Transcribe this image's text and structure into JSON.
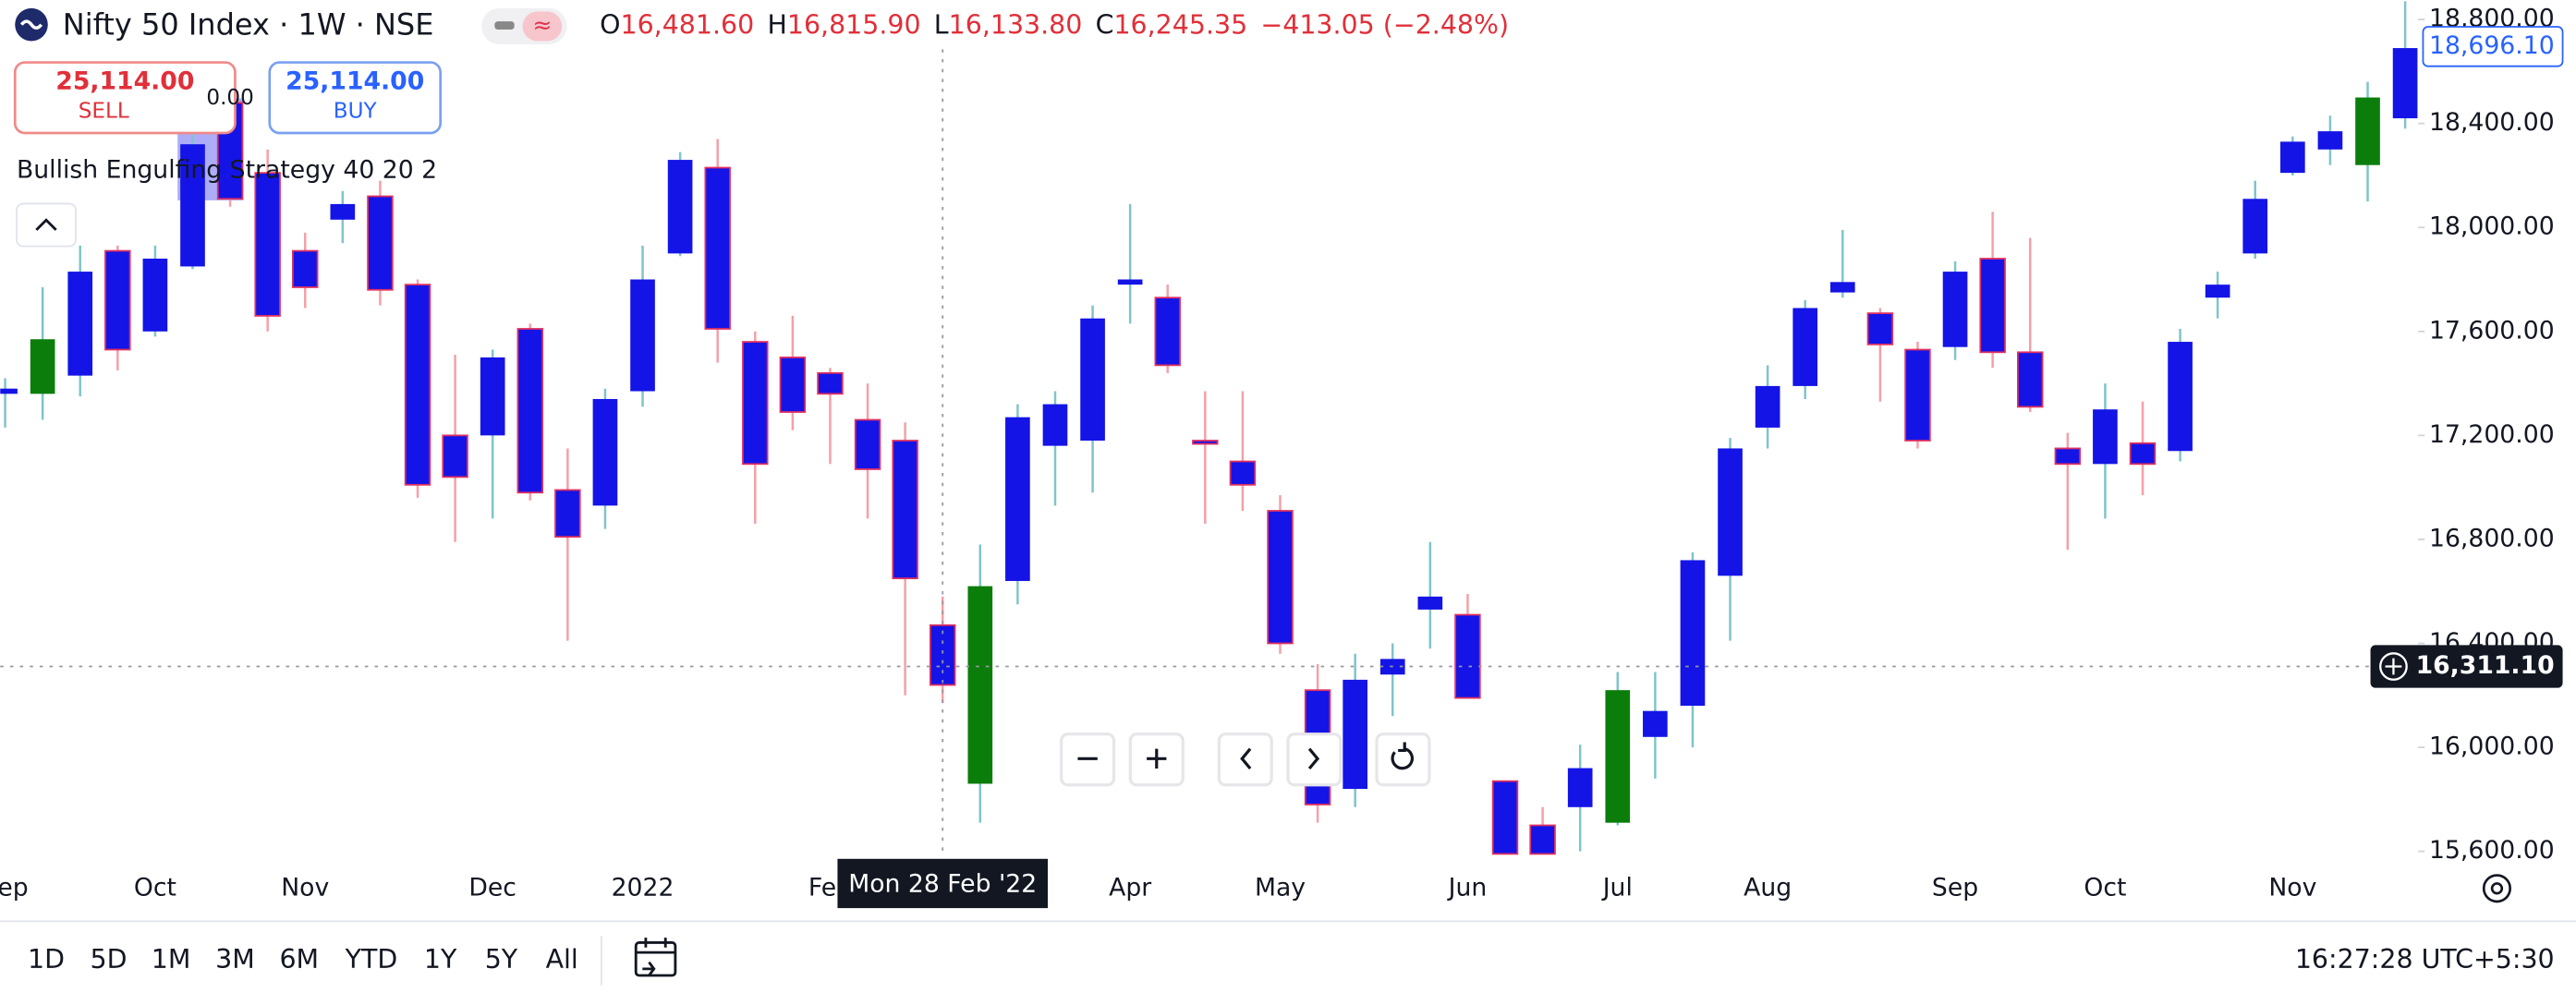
{
  "header": {
    "title": "Nifty 50 Index · 1W · NSE",
    "ohlc": [
      {
        "key": "O",
        "value": "16,481.60"
      },
      {
        "key": "H",
        "value": "16,815.90"
      },
      {
        "key": "L",
        "value": "16,133.80"
      },
      {
        "key": "C",
        "value": "16,245.35"
      }
    ],
    "change": "−413.05 (−2.48%)"
  },
  "trade": {
    "sell_price": "25,114.00",
    "sell": "SELL",
    "buy_price": "25,114.00",
    "buy": "BUY",
    "spread": "0.00"
  },
  "strategy": "Bullish Engulfing Strategy 40 20 2",
  "chart_data": {
    "type": "candlestick",
    "categories": [
      "Sep",
      null,
      null,
      null,
      "Oct",
      null,
      null,
      null,
      "Nov",
      null,
      null,
      null,
      null,
      "Dec",
      null,
      null,
      null,
      "2022",
      null,
      null,
      null,
      null,
      "Feb",
      null,
      null,
      null,
      null,
      null,
      null,
      null,
      "Apr",
      null,
      null,
      null,
      "May",
      null,
      null,
      null,
      null,
      "Jun",
      null,
      null,
      null,
      "Jul",
      null,
      null,
      null,
      "Aug",
      null,
      null,
      null,
      null,
      "Sep",
      null,
      null,
      null,
      "Oct",
      null,
      null,
      null,
      null,
      "Nov",
      null,
      null,
      null
    ],
    "open": [
      17360,
      17360,
      17430,
      17910,
      17600,
      17850,
      18480,
      18210,
      17910,
      18030,
      18120,
      17780,
      17200,
      17200,
      17610,
      16990,
      16930,
      17370,
      17900,
      18230,
      17560,
      17500,
      17440,
      17260,
      17180,
      16470,
      15860,
      16640,
      17160,
      17180,
      17780,
      17730,
      17180,
      17100,
      16910,
      16220,
      15840,
      16280,
      16530,
      16510,
      15870,
      15700,
      15770,
      15710,
      16040,
      16160,
      16660,
      17230,
      17390,
      17750,
      17670,
      17530,
      17540,
      17880,
      17520,
      17150,
      17090,
      17170,
      17140,
      17730,
      17900,
      18210,
      18300,
      18240,
      18420
    ],
    "high": [
      17420,
      17770,
      17930,
      17930,
      17930,
      18400,
      18560,
      18300,
      17980,
      18140,
      18180,
      17800,
      17510,
      17530,
      17630,
      17150,
      17380,
      17930,
      18290,
      18340,
      17600,
      17660,
      17460,
      17400,
      17250,
      16580,
      16780,
      17320,
      17370,
      17700,
      18090,
      17780,
      17370,
      17370,
      16970,
      16320,
      16360,
      16400,
      16790,
      16590,
      15870,
      15770,
      16010,
      16290,
      16290,
      16750,
      17190,
      17470,
      17720,
      17990,
      17690,
      17560,
      17870,
      18060,
      17960,
      17210,
      17400,
      17330,
      17610,
      17830,
      18180,
      18350,
      18430,
      18560,
      18870
    ],
    "low": [
      17230,
      17260,
      17350,
      17450,
      17580,
      17840,
      18080,
      17600,
      17690,
      17940,
      17700,
      16960,
      16790,
      16880,
      16950,
      16410,
      16840,
      17310,
      17890,
      17480,
      16860,
      17220,
      17090,
      16880,
      16200,
      16170,
      15710,
      16550,
      16930,
      16980,
      17630,
      17440,
      16860,
      16910,
      16360,
      15710,
      15770,
      16120,
      16380,
      16190,
      15590,
      15590,
      15600,
      15700,
      15880,
      16000,
      16410,
      17150,
      17340,
      17730,
      17330,
      17150,
      17490,
      17460,
      17290,
      16760,
      16880,
      16970,
      17100,
      17650,
      17880,
      18200,
      18240,
      18100,
      18380
    ],
    "close": [
      17380,
      17570,
      17830,
      17530,
      17880,
      18320,
      18110,
      17660,
      17770,
      18090,
      17760,
      17010,
      17040,
      17500,
      16980,
      16810,
      17340,
      17800,
      18260,
      17610,
      17090,
      17290,
      17360,
      17070,
      16650,
      16240,
      16620,
      17270,
      17320,
      17650,
      17800,
      17470,
      17170,
      17010,
      16400,
      15780,
      16260,
      16340,
      16580,
      16190,
      15590,
      15590,
      15920,
      16220,
      16140,
      16720,
      17150,
      17390,
      17690,
      17790,
      17550,
      17180,
      17830,
      17520,
      17310,
      17090,
      17300,
      17090,
      17560,
      17780,
      18110,
      18330,
      18370,
      18500,
      18690
    ],
    "colors": [
      "#1414e6",
      "#0b7d0b",
      "#1414e6",
      "#1414e6",
      "#1414e6",
      "#1414e6",
      "#1414e6",
      "#1414e6",
      "#1414e6",
      "#1414e6",
      "#1414e6",
      "#1414e6",
      "#1414e6",
      "#1414e6",
      "#1414e6",
      "#1414e6",
      "#1414e6",
      "#1414e6",
      "#1414e6",
      "#1414e6",
      "#1414e6",
      "#1414e6",
      "#1414e6",
      "#1414e6",
      "#1414e6",
      "#1414e6",
      "#0b7d0b",
      "#1414e6",
      "#1414e6",
      "#1414e6",
      "#1414e6",
      "#1414e6",
      "#1414e6",
      "#1414e6",
      "#1414e6",
      "#1414e6",
      "#1414e6",
      "#1414e6",
      "#1414e6",
      "#1414e6",
      "#1414e6",
      "#1414e6",
      "#1414e6",
      "#0b7d0b",
      "#1414e6",
      "#1414e6",
      "#1414e6",
      "#1414e6",
      "#1414e6",
      "#1414e6",
      "#1414e6",
      "#1414e6",
      "#1414e6",
      "#1414e6",
      "#1414e6",
      "#1414e6",
      "#1414e6",
      "#1414e6",
      "#1414e6",
      "#1414e6",
      "#1414e6",
      "#1414e6",
      "#1414e6",
      "#0b7d0b",
      "#1414e6"
    ],
    "wick_up_color": "#80c4c8",
    "wick_down_color": "#f4a0a8",
    "down_outline_color": "#e03060",
    "ylim": [
      15590,
      18875
    ],
    "yticks": [
      {
        "value": 15600,
        "label": "15,600.00"
      },
      {
        "value": 16000,
        "label": "16,000.00"
      },
      {
        "value": 16400,
        "label": "16,400.00"
      },
      {
        "value": 16800,
        "label": "16,800.00"
      },
      {
        "value": 17200,
        "label": "17,200.00"
      },
      {
        "value": 17600,
        "label": "17,600.00"
      },
      {
        "value": 18000,
        "label": "18,000.00"
      },
      {
        "value": 18400,
        "label": "18,400.00"
      },
      {
        "value": 18800,
        "label": "18,800.00"
      }
    ],
    "last_price": {
      "value": 18696.1,
      "label": "18,696.10"
    },
    "crosshair": {
      "value": 16311.1,
      "label": "16,311.10",
      "date": "Mon 28 Feb '22"
    }
  },
  "timeframes": [
    "1D",
    "5D",
    "1M",
    "3M",
    "6M",
    "YTD",
    "1Y",
    "5Y",
    "All"
  ],
  "clock": "16:27:28 UTC+5:30"
}
